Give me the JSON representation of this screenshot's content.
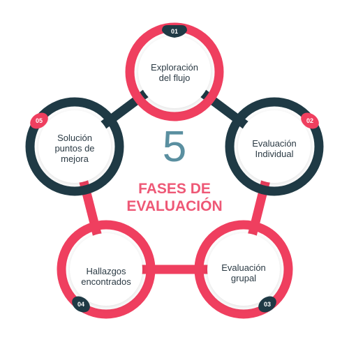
{
  "colors": {
    "pink": "#ef3f5f",
    "dark": "#1f3a45",
    "circle_fill": "#ffffff",
    "number_color": "#5a8fa0",
    "title_color": "#ee5876"
  },
  "center": {
    "number": "5",
    "title": "FASES DE\nEVALUACIÓN"
  },
  "phases": [
    {
      "id": "01",
      "label": "Exploración\ndel flujo"
    },
    {
      "id": "02",
      "label": "Evaluación\nIndividual"
    },
    {
      "id": "03",
      "label": "Evaluación\ngrupal"
    },
    {
      "id": "04",
      "label": "Hallazgos\nencontrados"
    },
    {
      "id": "05",
      "label": "Solución\npuntos de\nmejora"
    }
  ]
}
